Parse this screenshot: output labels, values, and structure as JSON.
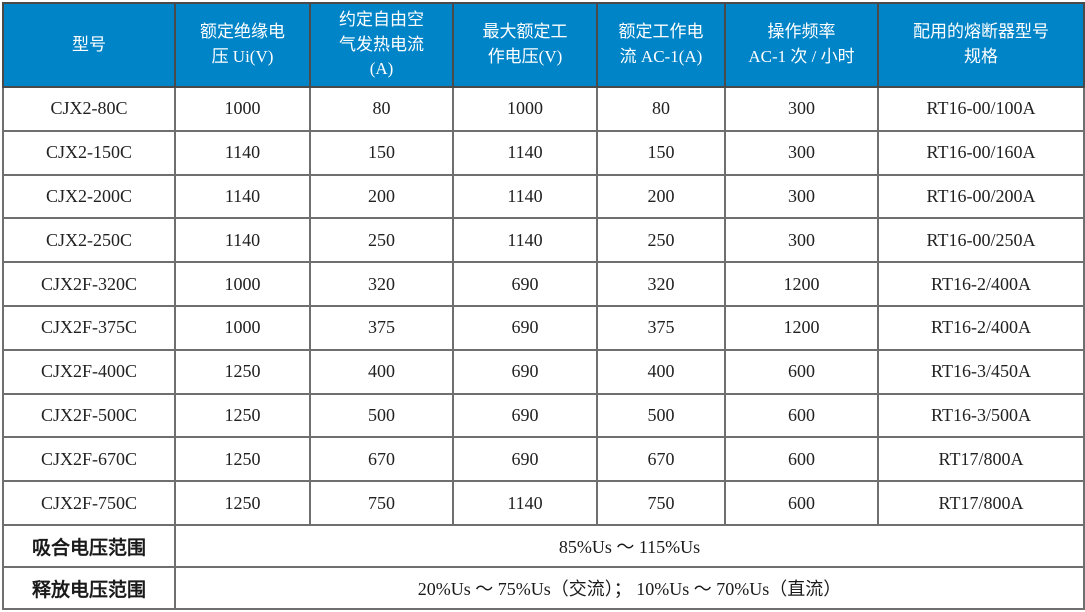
{
  "table": {
    "title_semantic": "contactor-specification-table",
    "accent_color": "#0084C8",
    "header_text_color": "#ffffff",
    "grid_color": "#6f6f6f",
    "outer_border_color": "#3f3f3f",
    "columns": [
      "型号",
      "额定绝缘电\n压 Ui(V)",
      "约定自由空\n气发热电流\n(A)",
      "最大额定工\n作电压(V)",
      "额定工作电\n流 AC-1(A)",
      "操作频率\nAC-1 次 / 小时",
      "配用的熔断器型号\n规格"
    ],
    "rows": [
      [
        "CJX2-80C",
        "1000",
        "80",
        "1000",
        "80",
        "300",
        "RT16-00/100A"
      ],
      [
        "CJX2-150C",
        "1140",
        "150",
        "1140",
        "150",
        "300",
        "RT16-00/160A"
      ],
      [
        "CJX2-200C",
        "1140",
        "200",
        "1140",
        "200",
        "300",
        "RT16-00/200A"
      ],
      [
        "CJX2-250C",
        "1140",
        "250",
        "1140",
        "250",
        "300",
        "RT16-00/250A"
      ],
      [
        "CJX2F-320C",
        "1000",
        "320",
        "690",
        "320",
        "1200",
        "RT16-2/400A"
      ],
      [
        "CJX2F-375C",
        "1000",
        "375",
        "690",
        "375",
        "1200",
        "RT16-2/400A"
      ],
      [
        "CJX2F-400C",
        "1250",
        "400",
        "690",
        "400",
        "600",
        "RT16-3/450A"
      ],
      [
        "CJX2F-500C",
        "1250",
        "500",
        "690",
        "500",
        "600",
        "RT16-3/500A"
      ],
      [
        "CJX2F-670C",
        "1250",
        "670",
        "690",
        "670",
        "600",
        "RT17/800A"
      ],
      [
        "CJX2F-750C",
        "1250",
        "750",
        "1140",
        "750",
        "600",
        "RT17/800A"
      ]
    ],
    "footer_rows": [
      {
        "label": "吸合电压范围",
        "value": "85%Us ～ 115%Us"
      },
      {
        "label": "释放电压范围",
        "value": "20%Us ～ 75%Us（交流）； 10%Us ～ 70%Us（直流）"
      }
    ]
  }
}
